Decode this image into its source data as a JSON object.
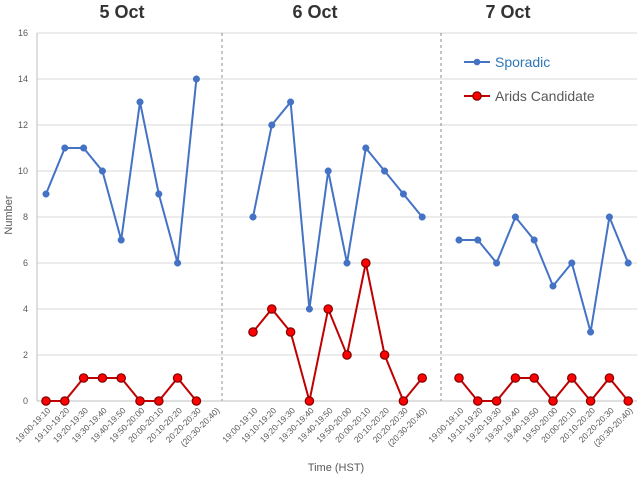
{
  "chart_data": {
    "type": "line",
    "ylabel": "Number",
    "xlabel": "Time (HST)",
    "ylim": [
      0,
      16
    ],
    "yticks": [
      0,
      2,
      4,
      6,
      8,
      10,
      12,
      14,
      16
    ],
    "grid": true,
    "legend_position": "top-right",
    "categories": [
      "19:00-19:10",
      "19:10-19:20",
      "19:20-19:30",
      "19:30-19:40",
      "19:40-19:50",
      "19:50-20:00",
      "20:00-20:10",
      "20:10-20:20",
      "20:20-20:30",
      "(20:30-20:40)"
    ],
    "groups": [
      {
        "title": "5 Oct",
        "series": [
          {
            "name": "Sporadic",
            "values": [
              9,
              11,
              11,
              10,
              7,
              13,
              9,
              6,
              14,
              null
            ]
          },
          {
            "name": "Arids Candidate",
            "values": [
              0,
              0,
              1,
              1,
              1,
              0,
              0,
              1,
              0,
              null
            ]
          }
        ]
      },
      {
        "title": "6 Oct",
        "series": [
          {
            "name": "Sporadic",
            "values": [
              8,
              12,
              13,
              4,
              10,
              6,
              11,
              10,
              9,
              8
            ]
          },
          {
            "name": "Arids Candidate",
            "values": [
              3,
              4,
              3,
              0,
              4,
              2,
              6,
              2,
              0,
              1
            ]
          }
        ]
      },
      {
        "title": "7 Oct",
        "series": [
          {
            "name": "Sporadic",
            "values": [
              7,
              7,
              6,
              8,
              7,
              5,
              6,
              3,
              8,
              6
            ]
          },
          {
            "name": "Arids Candidate",
            "values": [
              1,
              0,
              0,
              1,
              1,
              0,
              1,
              0,
              1,
              0
            ]
          }
        ]
      }
    ],
    "legend": [
      {
        "name": "Sporadic",
        "color": "#4472c4"
      },
      {
        "name": "Arids Candidate",
        "color": "#c00000"
      }
    ]
  }
}
